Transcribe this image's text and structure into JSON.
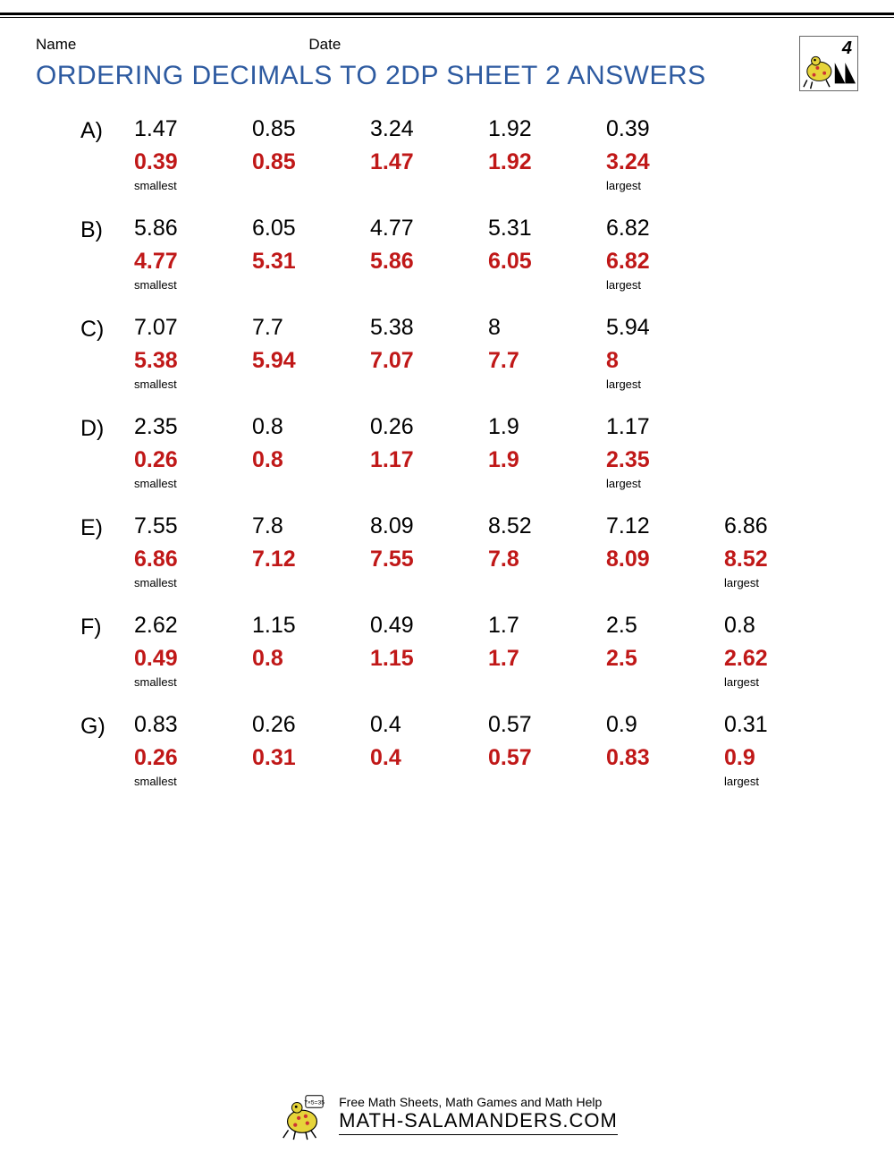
{
  "header": {
    "name_label": "Name",
    "date_label": "Date"
  },
  "title_text": "ORDERING DECIMALS TO 2DP SHEET 2 ANSWERS",
  "title_color": "#2d5aa0",
  "answer_color": "#c01818",
  "grade_number": "4",
  "tags": {
    "smallest": "smallest",
    "largest": "largest"
  },
  "problems": [
    {
      "letter": "A)",
      "values": [
        "1.47",
        "0.85",
        "3.24",
        "1.92",
        "0.39"
      ],
      "answers": [
        "0.39",
        "0.85",
        "1.47",
        "1.92",
        "3.24"
      ]
    },
    {
      "letter": "B)",
      "values": [
        "5.86",
        "6.05",
        "4.77",
        "5.31",
        "6.82"
      ],
      "answers": [
        "4.77",
        "5.31",
        "5.86",
        "6.05",
        "6.82"
      ]
    },
    {
      "letter": "C)",
      "values": [
        "7.07",
        "7.7",
        "5.38",
        "8",
        "5.94"
      ],
      "answers": [
        "5.38",
        "5.94",
        "7.07",
        "7.7",
        "8"
      ]
    },
    {
      "letter": "D)",
      "values": [
        "2.35",
        "0.8",
        "0.26",
        "1.9",
        "1.17"
      ],
      "answers": [
        "0.26",
        "0.8",
        "1.17",
        "1.9",
        "2.35"
      ]
    },
    {
      "letter": "E)",
      "values": [
        "7.55",
        "7.8",
        "8.09",
        "8.52",
        "7.12",
        "6.86"
      ],
      "answers": [
        "6.86",
        "7.12",
        "7.55",
        "7.8",
        "8.09",
        "8.52"
      ]
    },
    {
      "letter": "F)",
      "values": [
        "2.62",
        "1.15",
        "0.49",
        "1.7",
        "2.5",
        "0.8"
      ],
      "answers": [
        "0.49",
        "0.8",
        "1.15",
        "1.7",
        "2.5",
        "2.62"
      ]
    },
    {
      "letter": "G)",
      "values": [
        "0.83",
        "0.26",
        "0.4",
        "0.57",
        "0.9",
        "0.31"
      ],
      "answers": [
        "0.26",
        "0.31",
        "0.4",
        "0.57",
        "0.83",
        "0.9"
      ]
    }
  ],
  "footer": {
    "line1": "Free Math Sheets, Math Games and Math Help",
    "line2": "MATH-SALAMANDERS.COM"
  }
}
